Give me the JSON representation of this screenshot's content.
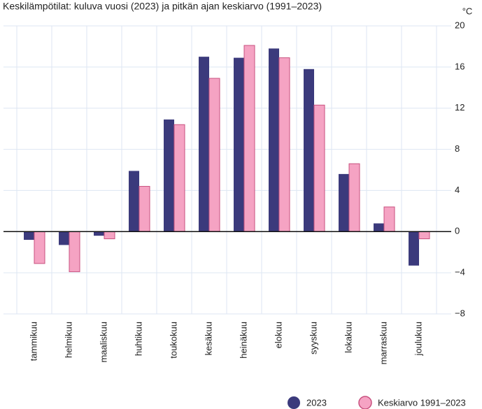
{
  "chart_data": {
    "type": "bar",
    "title": "Keskilämpötilat: kuluva vuosi (2023) ja pitkän ajan keskiarvo (1991–2023)",
    "y_unit": "°C",
    "categories": [
      "tammikuu",
      "helmikuu",
      "maaliskuu",
      "huhtikuu",
      "toukokuu",
      "kesäkuu",
      "heinäkuu",
      "elokuu",
      "syyskuu",
      "lokakuu",
      "marraskuu",
      "joulukuu"
    ],
    "series": [
      {
        "name": "2023",
        "color": "#3b3a7c",
        "values": [
          -0.8,
          -1.3,
          -0.4,
          5.9,
          10.9,
          17.0,
          16.9,
          17.8,
          15.8,
          5.6,
          0.8,
          -3.3
        ]
      },
      {
        "name": "Keskiarvo 1991–2023",
        "color": "#f5a3c3",
        "values": [
          -3.1,
          -3.9,
          -0.7,
          4.4,
          10.4,
          14.9,
          18.1,
          16.9,
          12.3,
          6.6,
          2.4,
          -0.7
        ]
      }
    ],
    "ylim": [
      -8,
      20
    ],
    "yticks": [
      {
        "value": -8,
        "label": "−8"
      },
      {
        "value": -4,
        "label": "−4"
      },
      0,
      4,
      8,
      12,
      16,
      20
    ],
    "grid": true,
    "legend": "bottom-right"
  }
}
